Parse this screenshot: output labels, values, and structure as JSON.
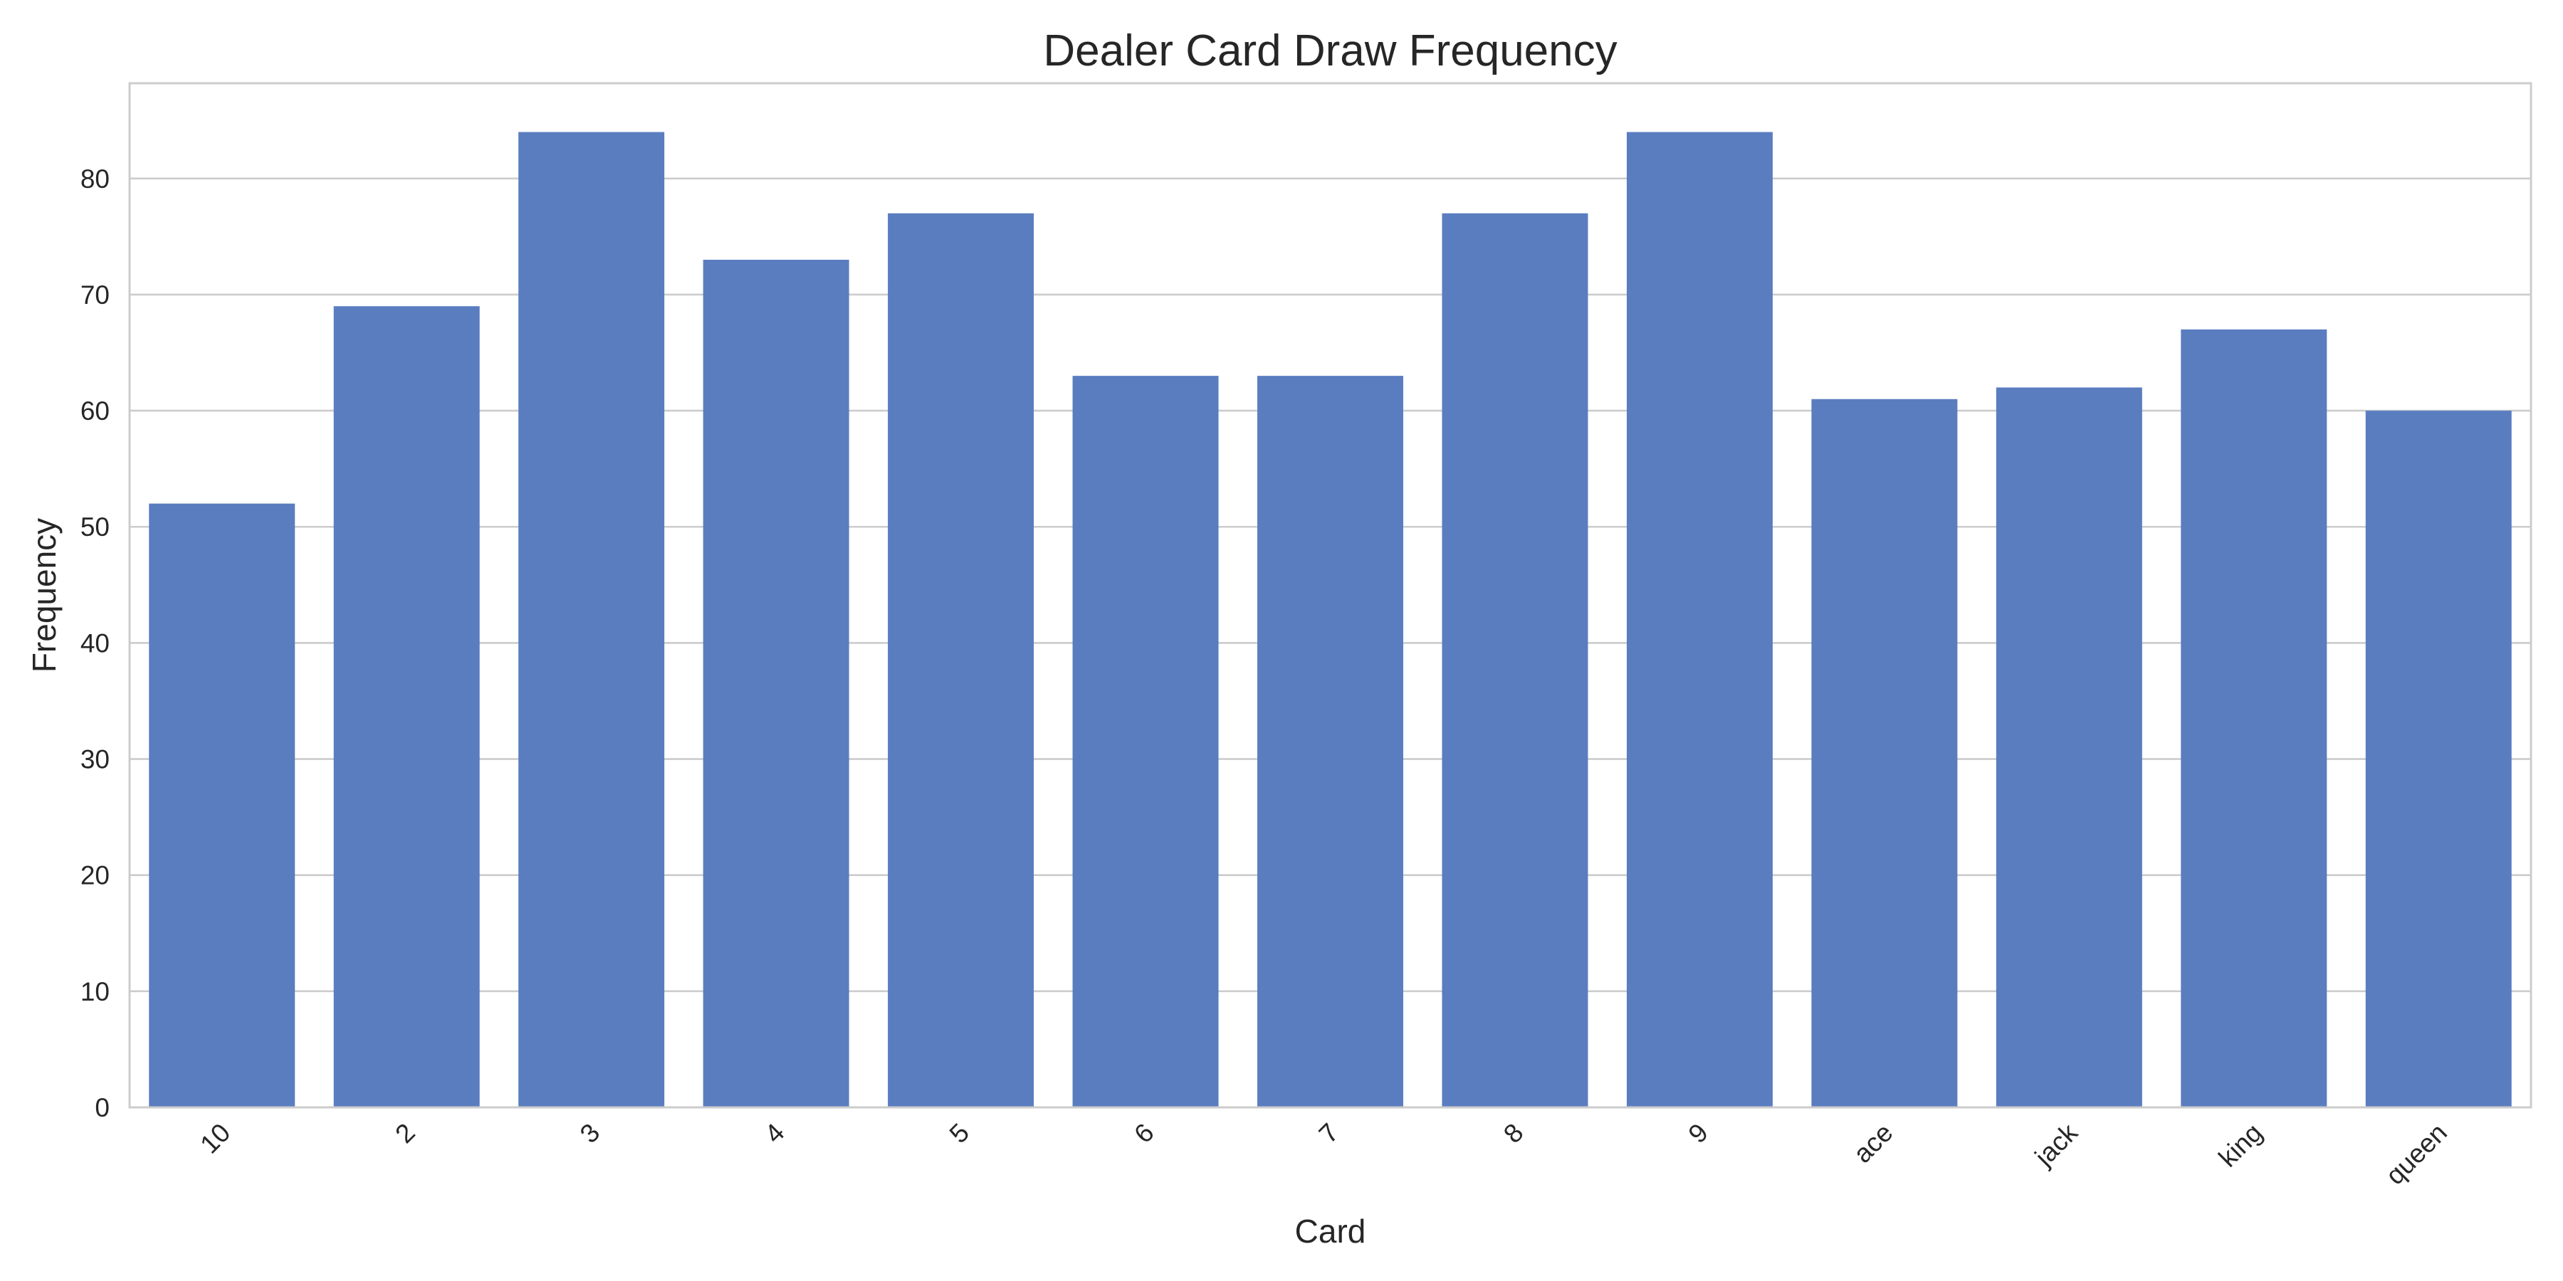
{
  "chart_data": {
    "type": "bar",
    "title": "Dealer Card Draw Frequency",
    "xlabel": "Card",
    "ylabel": "Frequency",
    "categories": [
      "10",
      "2",
      "3",
      "4",
      "5",
      "6",
      "7",
      "8",
      "9",
      "ace",
      "jack",
      "king",
      "queen"
    ],
    "values": [
      52,
      69,
      84,
      73,
      77,
      63,
      63,
      77,
      84,
      61,
      62,
      67,
      60
    ],
    "ylim": [
      0,
      88.2
    ],
    "yticks": [
      0,
      10,
      20,
      30,
      40,
      50,
      60,
      70,
      80
    ],
    "x_tick_rotation_deg": 45,
    "grid": "horizontal",
    "legend": "none",
    "colors": {
      "bar": "#5a7dc0",
      "grid": "#cccccc",
      "frame": "#cccccc",
      "text": "#262626",
      "background": "#ffffff"
    }
  }
}
